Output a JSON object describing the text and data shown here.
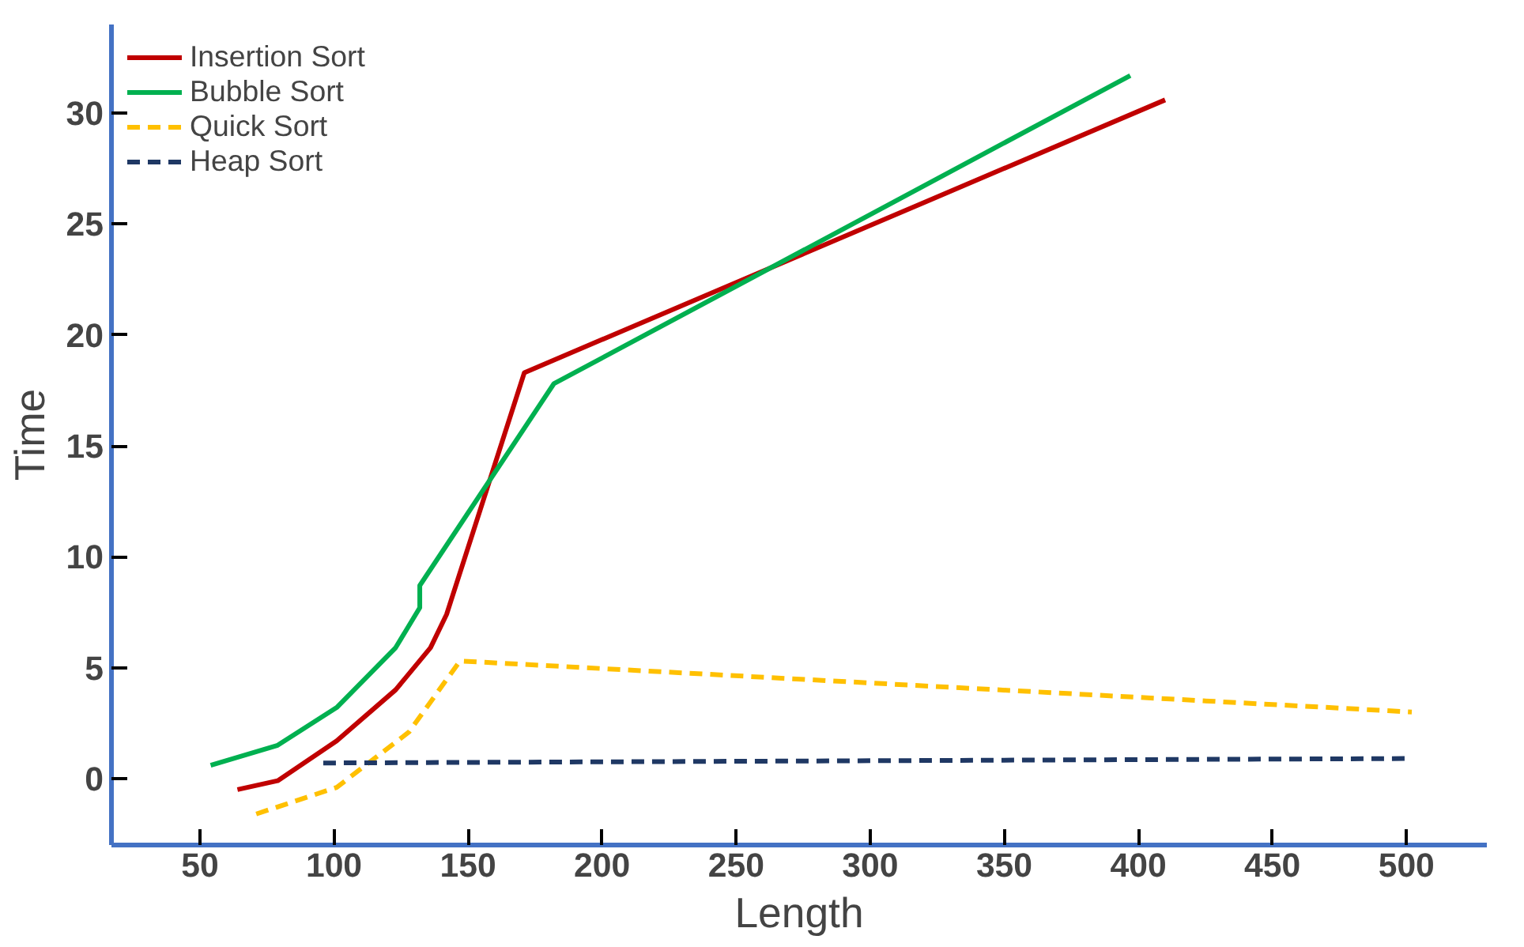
{
  "chart_data": {
    "type": "line",
    "xlabel": "Length",
    "ylabel": "Time",
    "xlim": [
      17,
      530
    ],
    "ylim": [
      -3,
      34
    ],
    "xticks": [
      50,
      100,
      150,
      200,
      250,
      300,
      350,
      400,
      450,
      500
    ],
    "yticks": [
      0,
      5,
      10,
      15,
      20,
      25,
      30
    ],
    "grid": false,
    "legend": "top left",
    "marker": "none",
    "series": [
      {
        "name": "Insertion Sort",
        "color": "#c00000",
        "line_style": "solid",
        "x": [
          64,
          79,
          101,
          123,
          136,
          142,
          171,
          410
        ],
        "values": [
          -0.5,
          -0.1,
          1.7,
          4.0,
          5.9,
          7.4,
          18.3,
          30.6
        ]
      },
      {
        "name": "Bubble Sort",
        "color": "#00b050",
        "line_style": "solid",
        "x": [
          54,
          79,
          101,
          123,
          132,
          132,
          182,
          397
        ],
        "values": [
          0.6,
          1.5,
          3.2,
          5.9,
          7.7,
          8.7,
          17.8,
          31.7
        ]
      },
      {
        "name": "Quick Sort",
        "color": "#ffc000",
        "line_style": "dashed",
        "x": [
          71,
          101,
          128,
          147,
          502
        ],
        "values": [
          -1.6,
          -0.4,
          2.1,
          5.3,
          3.0
        ]
      },
      {
        "name": "Heap Sort",
        "color": "#1f3864",
        "line_style": "dashed",
        "x": [
          96,
          500
        ],
        "values": [
          0.7,
          0.9
        ]
      }
    ]
  }
}
